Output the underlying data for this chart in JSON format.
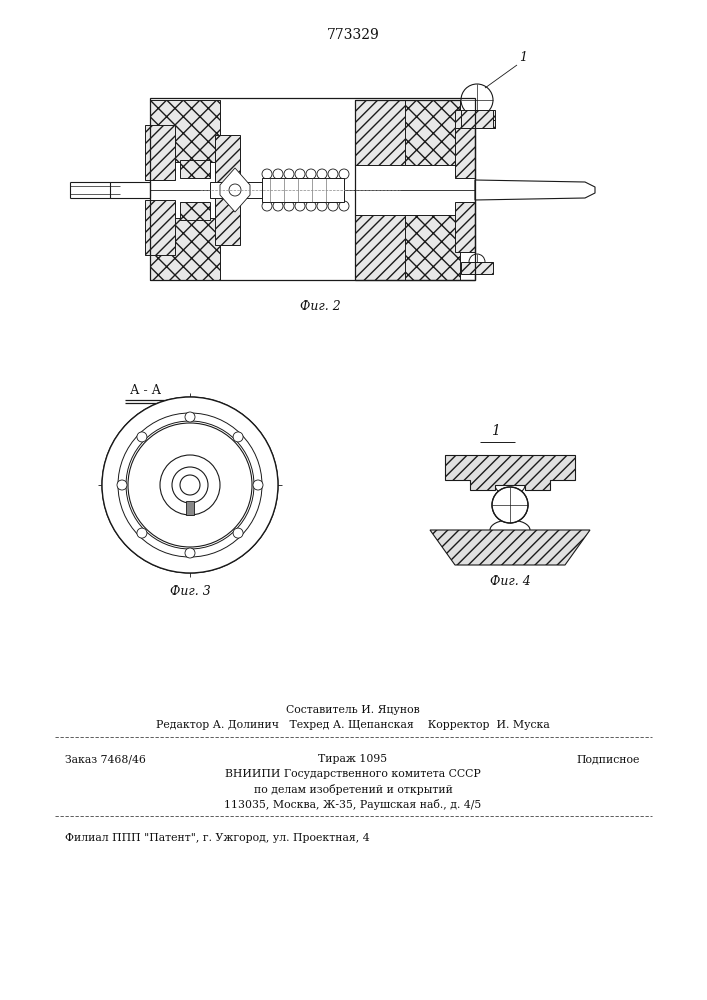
{
  "patent_number": "773329",
  "bg_color": "#ffffff",
  "fig2_caption": "Фиг. 2",
  "fig3_caption": "Фиг. 3",
  "fig4_caption": "Фиг. 4",
  "fig3_label": "А - А",
  "fig4_label": "1",
  "line1_center": "Составитель И. Яцунов",
  "line2": "Редактор А. Долинич   Техред А. Щепанская    Корректор  И. Муска",
  "line3_col1": "Заказ 7468/46",
  "line3_col2": "Тираж 1095",
  "line3_col3": "Подписное",
  "line4": "ВНИИПИ Государственного комитета СССР",
  "line5": "по делам изобретений и открытий",
  "line6": "113035, Москва, Ж-35, Раушская наб., д. 4/5",
  "line7": "Филиал ППП \"Патент\", г. Ужгород, ул. Проектная, 4",
  "line_color": "#1a1a1a",
  "text_color": "#111111"
}
